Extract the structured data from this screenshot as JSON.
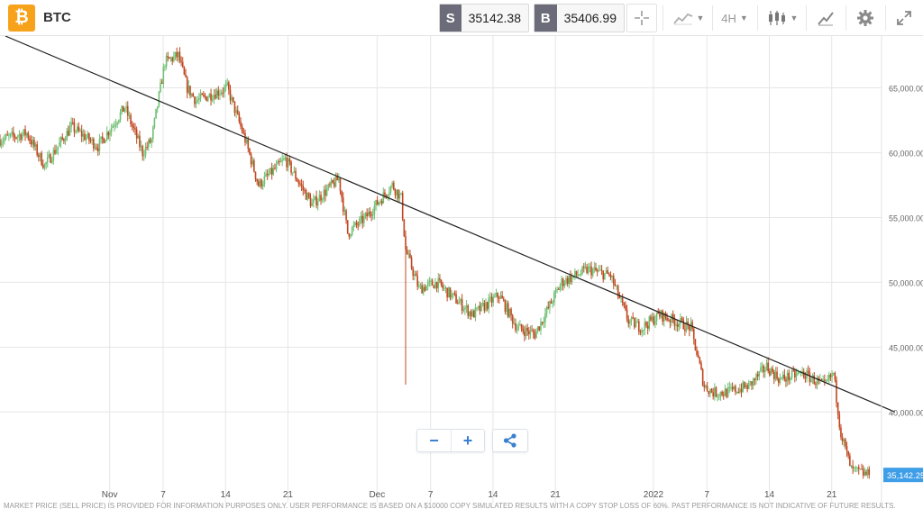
{
  "header": {
    "logo_glyph": "₿",
    "symbol": "BTC",
    "sell_label": "S",
    "sell_price": "35142.38",
    "buy_label": "B",
    "buy_price": "35406.99",
    "timeframe": "4H",
    "tools": [
      "crosshair-icon",
      "line-chart-type-icon",
      "timeframe-select",
      "candlestick-type-icon",
      "drawing-tools-icon",
      "gear-icon",
      "fullscreen-icon"
    ]
  },
  "colors": {
    "up": "#6fbf73",
    "down": "#c1461e",
    "trend_line": "#222222",
    "grid": "#e6e6e6",
    "price_tag": "#3f9ee8",
    "accent": "#3a7fd1"
  },
  "chart_data": {
    "type": "candlestick",
    "ylim": [
      33000,
      69000
    ],
    "x_range_days": [
      0,
      85.4
    ],
    "y_ticks": [
      40000,
      45000,
      50000,
      55000,
      60000,
      65000
    ],
    "y_tick_labels": [
      "40,000.00",
      "45,000.00",
      "50,000.00",
      "55,000.00",
      "60,000.00",
      "65,000.00"
    ],
    "x_ticks": [
      {
        "day": 12.3,
        "label": "Nov"
      },
      {
        "day": 18.3,
        "label": "7"
      },
      {
        "day": 25.3,
        "label": "14"
      },
      {
        "day": 32.3,
        "label": "21"
      },
      {
        "day": 42.3,
        "label": "Dec"
      },
      {
        "day": 48.3,
        "label": "7"
      },
      {
        "day": 55.3,
        "label": "14"
      },
      {
        "day": 62.3,
        "label": "21"
      },
      {
        "day": 73.3,
        "label": "2022"
      },
      {
        "day": 79.3,
        "label": "7"
      },
      {
        "day": 86.3,
        "label": "14"
      },
      {
        "day": 93.3,
        "label": "21"
      }
    ],
    "trend_line": [
      {
        "day": 0.6,
        "price": 69000
      },
      {
        "day": 100.4,
        "price": 40000
      }
    ],
    "current_price": 35142.25,
    "current_price_label": "35,142.25",
    "path_days": [
      0,
      3,
      5,
      8,
      11,
      14,
      16,
      17,
      18.5,
      20,
      21,
      22,
      25.5,
      27.5,
      29,
      32,
      35,
      38,
      39,
      41,
      44,
      45,
      45.5,
      47,
      49,
      53,
      56,
      58,
      60,
      63,
      66,
      68.5,
      70.5,
      72,
      74,
      77.5,
      79,
      80,
      81.5,
      84,
      86,
      87.5,
      90,
      92.5,
      93.5,
      94.3,
      95.5,
      97.5
    ],
    "path_prices": [
      61000,
      61500,
      59000,
      62000,
      60500,
      63500,
      60000,
      61000,
      67000,
      67500,
      65000,
      64000,
      65000,
      61000,
      57500,
      59500,
      56000,
      58000,
      53800,
      55000,
      57500,
      56500,
      52500,
      49500,
      50000,
      47500,
      49000,
      46500,
      46000,
      50000,
      51000,
      50500,
      47000,
      46500,
      47500,
      46500,
      42000,
      41500,
      41500,
      42000,
      43500,
      42500,
      43000,
      42000,
      43000,
      38500,
      35500,
      35142.25
    ]
  },
  "controls": {
    "zoom_out": "−",
    "zoom_in": "+",
    "share": "share-icon"
  },
  "footer": {
    "disclaimer": "MARKET PRICE (SELL PRICE) IS PROVIDED FOR INFORMATION PURPOSES ONLY. USER PERFORMANCE IS BASED ON A $10000 COPY SIMULATED RESULTS WITH A COPY STOP LOSS OF 60%. PAST PERFORMANCE IS NOT INDICATIVE OF FUTURE RESULTS."
  }
}
